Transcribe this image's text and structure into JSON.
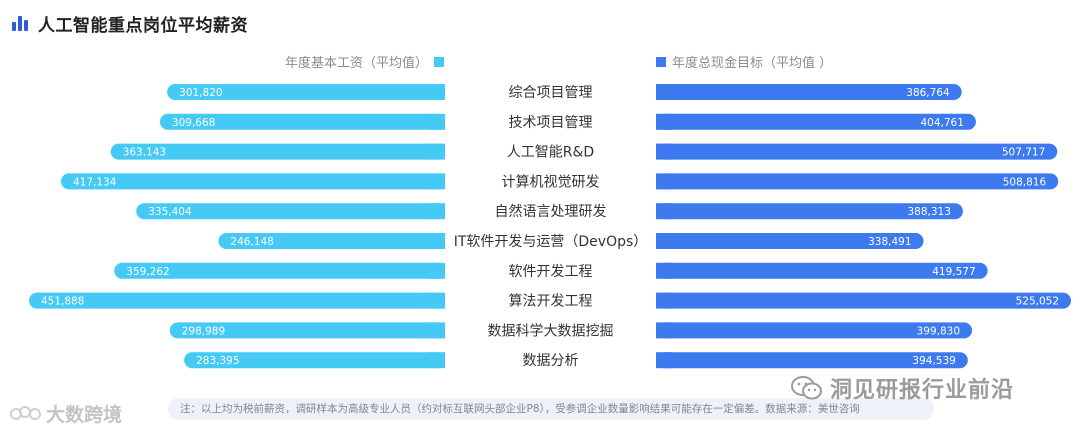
{
  "title": "人工智能重点岗位平均薪资",
  "legend": {
    "left_label": "年度基本工资（平均值）",
    "right_label": "年度总现金目标（平均值 ）"
  },
  "colors": {
    "left_series": "#45c9f5",
    "right_series": "#3d7af0",
    "title_icon": "#2f5bd9"
  },
  "chart_data": {
    "type": "bar",
    "orientation": "horizontal-butterfly",
    "categories": [
      "综合项目管理",
      "技术项目管理",
      "人工智能R&D",
      "计算机视觉研发",
      "自然语言处理研发",
      "IT软件开发与运营（DevOps）",
      "软件开发工程",
      "算法开发工程",
      "数据科学大数据挖掘",
      "数据分析"
    ],
    "series": [
      {
        "name": "年度基本工资（平均值）",
        "values": [
          301820,
          309668,
          363143,
          417134,
          335404,
          246148,
          359262,
          451888,
          298989,
          283395
        ],
        "labels": [
          "301,820",
          "309,668",
          "363,143",
          "417,134",
          "335,404",
          "246,148",
          "359,262",
          "451,888",
          "298,989",
          "283,395"
        ]
      },
      {
        "name": "年度总现金目标（平均值 ）",
        "values": [
          386764,
          404761,
          507717,
          508816,
          388313,
          338491,
          419577,
          525052,
          399830,
          394539
        ],
        "labels": [
          "386,764",
          "404,761",
          "507,717",
          "508,816",
          "388,313",
          "338,491",
          "419,577",
          "525,052",
          "399,830",
          "394,539"
        ]
      }
    ]
  },
  "footnote": "注：以上均为税前薪资，调研样本为高级专业人员（约对标互联网头部企业P8），受参调企业数量影响结果可能存在一定偏差。数据来源：美世咨询",
  "watermark_left": "大数跨境",
  "watermark_right": "洞见研报行业前沿"
}
